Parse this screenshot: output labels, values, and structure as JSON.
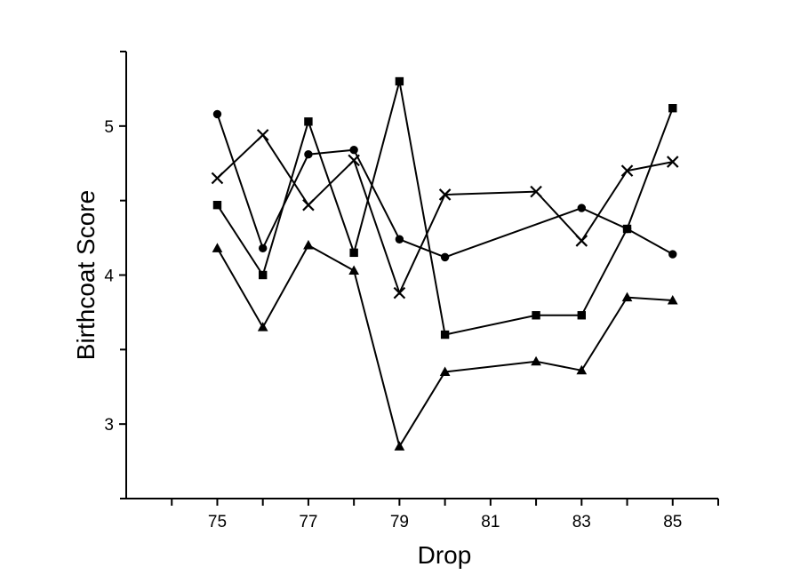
{
  "chart_data": {
    "type": "line",
    "xlabel": "Drop",
    "ylabel": "Birthcoat Score",
    "xlim": [
      73,
      86
    ],
    "ylim": [
      2.5,
      5.5
    ],
    "x_ticks": [
      75,
      77,
      79,
      81,
      83,
      85
    ],
    "x_minor_ticks": [
      74,
      76,
      78,
      80,
      82,
      84,
      86
    ],
    "y_ticks": [
      3,
      4,
      5
    ],
    "y_minor_ticks": [
      2.5,
      3.5,
      4.5,
      5.5
    ],
    "grid": false,
    "legend": "none",
    "colors": {
      "ink": "#000000",
      "background": "#ffffff"
    },
    "series": [
      {
        "marker": "circle",
        "x": [
          75,
          76,
          77,
          78,
          79,
          80,
          83,
          84,
          85
        ],
        "y": [
          5.08,
          4.18,
          4.81,
          4.84,
          4.24,
          4.12,
          4.45,
          4.31,
          4.14
        ]
      },
      {
        "marker": "x",
        "x": [
          75,
          76,
          77,
          78,
          79,
          80,
          82,
          83,
          84,
          85
        ],
        "y": [
          4.65,
          4.94,
          4.47,
          4.77,
          3.88,
          4.54,
          4.56,
          4.23,
          4.7,
          4.76
        ]
      },
      {
        "marker": "square",
        "x": [
          75,
          76,
          77,
          78,
          79,
          80,
          82,
          83,
          84,
          85
        ],
        "y": [
          4.47,
          4.0,
          5.03,
          4.15,
          5.3,
          3.6,
          3.73,
          3.73,
          4.31,
          5.12
        ]
      },
      {
        "marker": "triangle",
        "x": [
          75,
          76,
          77,
          78,
          79,
          80,
          82,
          83,
          84,
          85
        ],
        "y": [
          4.18,
          3.65,
          4.2,
          4.03,
          2.85,
          3.35,
          3.42,
          3.36,
          3.85,
          3.83
        ]
      }
    ]
  }
}
